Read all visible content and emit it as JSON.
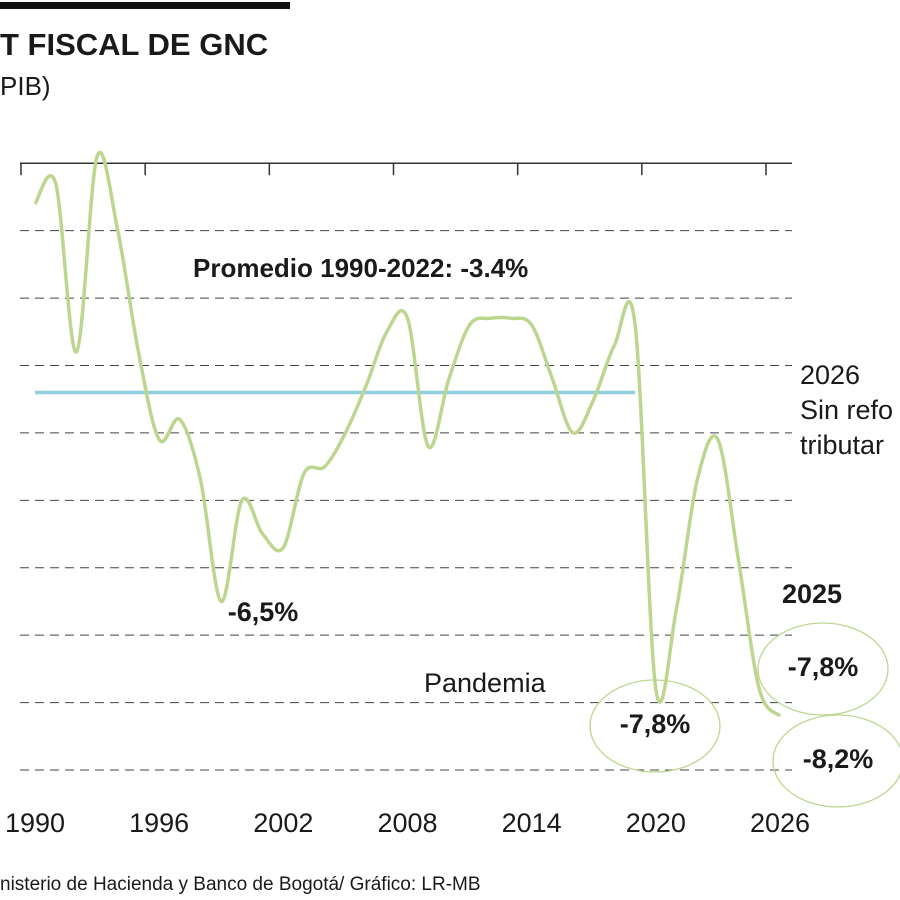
{
  "chart_data": {
    "type": "line",
    "title": "T FISCAL DE GNC",
    "subtitle": "PIB)",
    "source": "nisterio de Hacienda y Banco de Bogotá/ Gráfico: LR-MB",
    "x": [
      1990,
      1991,
      1992,
      1993,
      1994,
      1995,
      1996,
      1997,
      1998,
      1999,
      2000,
      2001,
      2002,
      2003,
      2004,
      2005,
      2006,
      2007,
      2008,
      2009,
      2010,
      2011,
      2012,
      2013,
      2014,
      2015,
      2016,
      2017,
      2018,
      2019,
      2020,
      2021,
      2022,
      2023,
      2024,
      2025,
      2026
    ],
    "series": [
      {
        "color": "#bdd68f",
        "values": [
          -0.6,
          -0.3,
          -2.8,
          0.1,
          -1.0,
          -2.8,
          -4.1,
          -3.8,
          -4.7,
          -6.5,
          -5.0,
          -5.5,
          -5.7,
          -4.6,
          -4.5,
          -4.0,
          -3.3,
          -2.5,
          -2.3,
          -4.2,
          -3.2,
          -2.4,
          -2.3,
          -2.3,
          -2.4,
          -3.2,
          -4.0,
          -3.5,
          -2.7,
          -2.4,
          -7.8,
          -6.6,
          -4.7,
          -4.1,
          -5.9,
          -7.8,
          -8.2
        ],
        "value_labels": [
          null,
          null,
          null,
          null,
          null,
          null,
          null,
          null,
          null,
          "-6,5%",
          null,
          null,
          null,
          null,
          null,
          null,
          null,
          null,
          null,
          null,
          null,
          null,
          null,
          null,
          null,
          null,
          null,
          null,
          null,
          null,
          "-7,8%",
          null,
          null,
          null,
          null,
          "-7,8%",
          "-8,2%"
        ]
      }
    ],
    "reference": {
      "value": -3.4,
      "label": "Promedio 1990-2022: -3.4%",
      "x": [
        1990,
        2019
      ],
      "color": "#8fd0e0"
    },
    "annotations": [
      "Pandemia",
      "2025",
      "2026",
      "Sin refo",
      "tributar"
    ],
    "xlim": [
      1990,
      2026
    ],
    "xticks": [
      1990,
      1996,
      2002,
      2008,
      2014,
      2020,
      2026
    ],
    "ylim": [
      -9,
      0.3
    ],
    "yticks": [
      0,
      -1,
      -2,
      -3,
      -4,
      -5,
      -6,
      -7,
      -8,
      -9
    ],
    "grid": true
  }
}
